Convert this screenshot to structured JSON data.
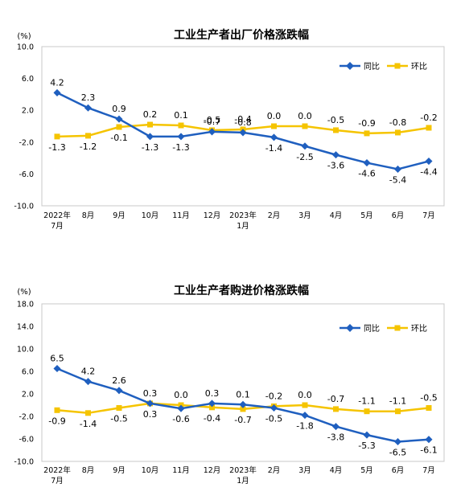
{
  "chart_data": [
    {
      "type": "line",
      "title": "工业生产者出厂价格涨跌幅",
      "ylabel": "(%)",
      "ylim": [
        -10.0,
        10.0
      ],
      "yticks": [
        "10.0",
        "6.0",
        "2.0",
        "-2.0",
        "-6.0",
        "-10.0"
      ],
      "ytick_values": [
        10,
        6,
        2,
        -2,
        -6,
        -10
      ],
      "categories": [
        "2022年\n7月",
        "8月",
        "9月",
        "10月",
        "11月",
        "12月",
        "2023年\n1月",
        "2月",
        "3月",
        "4月",
        "5月",
        "6月",
        "7月"
      ],
      "legend_position": "top-right",
      "series": [
        {
          "name": "同比",
          "color": "#1f5fbf",
          "values": [
            4.2,
            2.3,
            0.9,
            -1.3,
            -1.3,
            -0.7,
            -0.8,
            -1.4,
            -2.5,
            -3.6,
            -4.6,
            -5.4,
            -4.4
          ],
          "labels": [
            "4.2",
            "2.3",
            "0.9",
            "-1.3",
            "-1.3",
            "-0.7",
            "-0.8",
            "-1.4",
            "-2.5",
            "-3.6",
            "-4.6",
            "-5.4",
            "-4.4"
          ]
        },
        {
          "name": "环比",
          "color": "#f5c400",
          "values": [
            -1.3,
            -1.2,
            -0.1,
            0.2,
            0.1,
            -0.5,
            -0.4,
            0.0,
            0.0,
            -0.5,
            -0.9,
            -0.8,
            -0.2
          ],
          "labels": [
            "-1.3",
            "-1.2",
            "-0.1",
            "0.2",
            "0.1",
            "-0.5",
            "-0.4",
            "0.0",
            "0.0",
            "-0.5",
            "-0.9",
            "-0.8",
            "-0.2"
          ]
        }
      ]
    },
    {
      "type": "line",
      "title": "工业生产者购进价格涨跌幅",
      "ylabel": "(%)",
      "ylim": [
        -10.0,
        18.0
      ],
      "yticks": [
        "18.0",
        "14.0",
        "10.0",
        "6.0",
        "2.0",
        "-2.0",
        "-6.0",
        "-10.0"
      ],
      "ytick_values": [
        18,
        14,
        10,
        6,
        2,
        -2,
        -6,
        -10
      ],
      "categories": [
        "2022年\n7月",
        "8月",
        "9月",
        "10月",
        "11月",
        "12月",
        "2023年\n1月",
        "2月",
        "3月",
        "4月",
        "5月",
        "6月",
        "7月"
      ],
      "legend_position": "top-right",
      "series": [
        {
          "name": "同比",
          "color": "#1f5fbf",
          "values": [
            6.5,
            4.2,
            2.6,
            0.3,
            -0.6,
            0.3,
            0.1,
            -0.5,
            -1.8,
            -3.8,
            -5.3,
            -6.5,
            -6.1
          ],
          "labels": [
            "6.5",
            "4.2",
            "2.6",
            "0.3",
            "-0.6",
            "0.3",
            "0.1",
            "-0.5",
            "-1.8",
            "-3.8",
            "-5.3",
            "-6.5",
            "-6.1"
          ]
        },
        {
          "name": "环比",
          "color": "#f5c400",
          "values": [
            -0.9,
            -1.4,
            -0.5,
            0.3,
            0.0,
            -0.4,
            -0.7,
            -0.2,
            0.0,
            -0.7,
            -1.1,
            -1.1,
            -0.5
          ],
          "labels": [
            "-0.9",
            "-1.4",
            "-0.5",
            "0.3",
            "0.0",
            "-0.4",
            "-0.7",
            "-0.2",
            "0.0",
            "-0.7",
            "-1.1",
            "-1.1",
            "-0.5"
          ]
        }
      ]
    }
  ]
}
